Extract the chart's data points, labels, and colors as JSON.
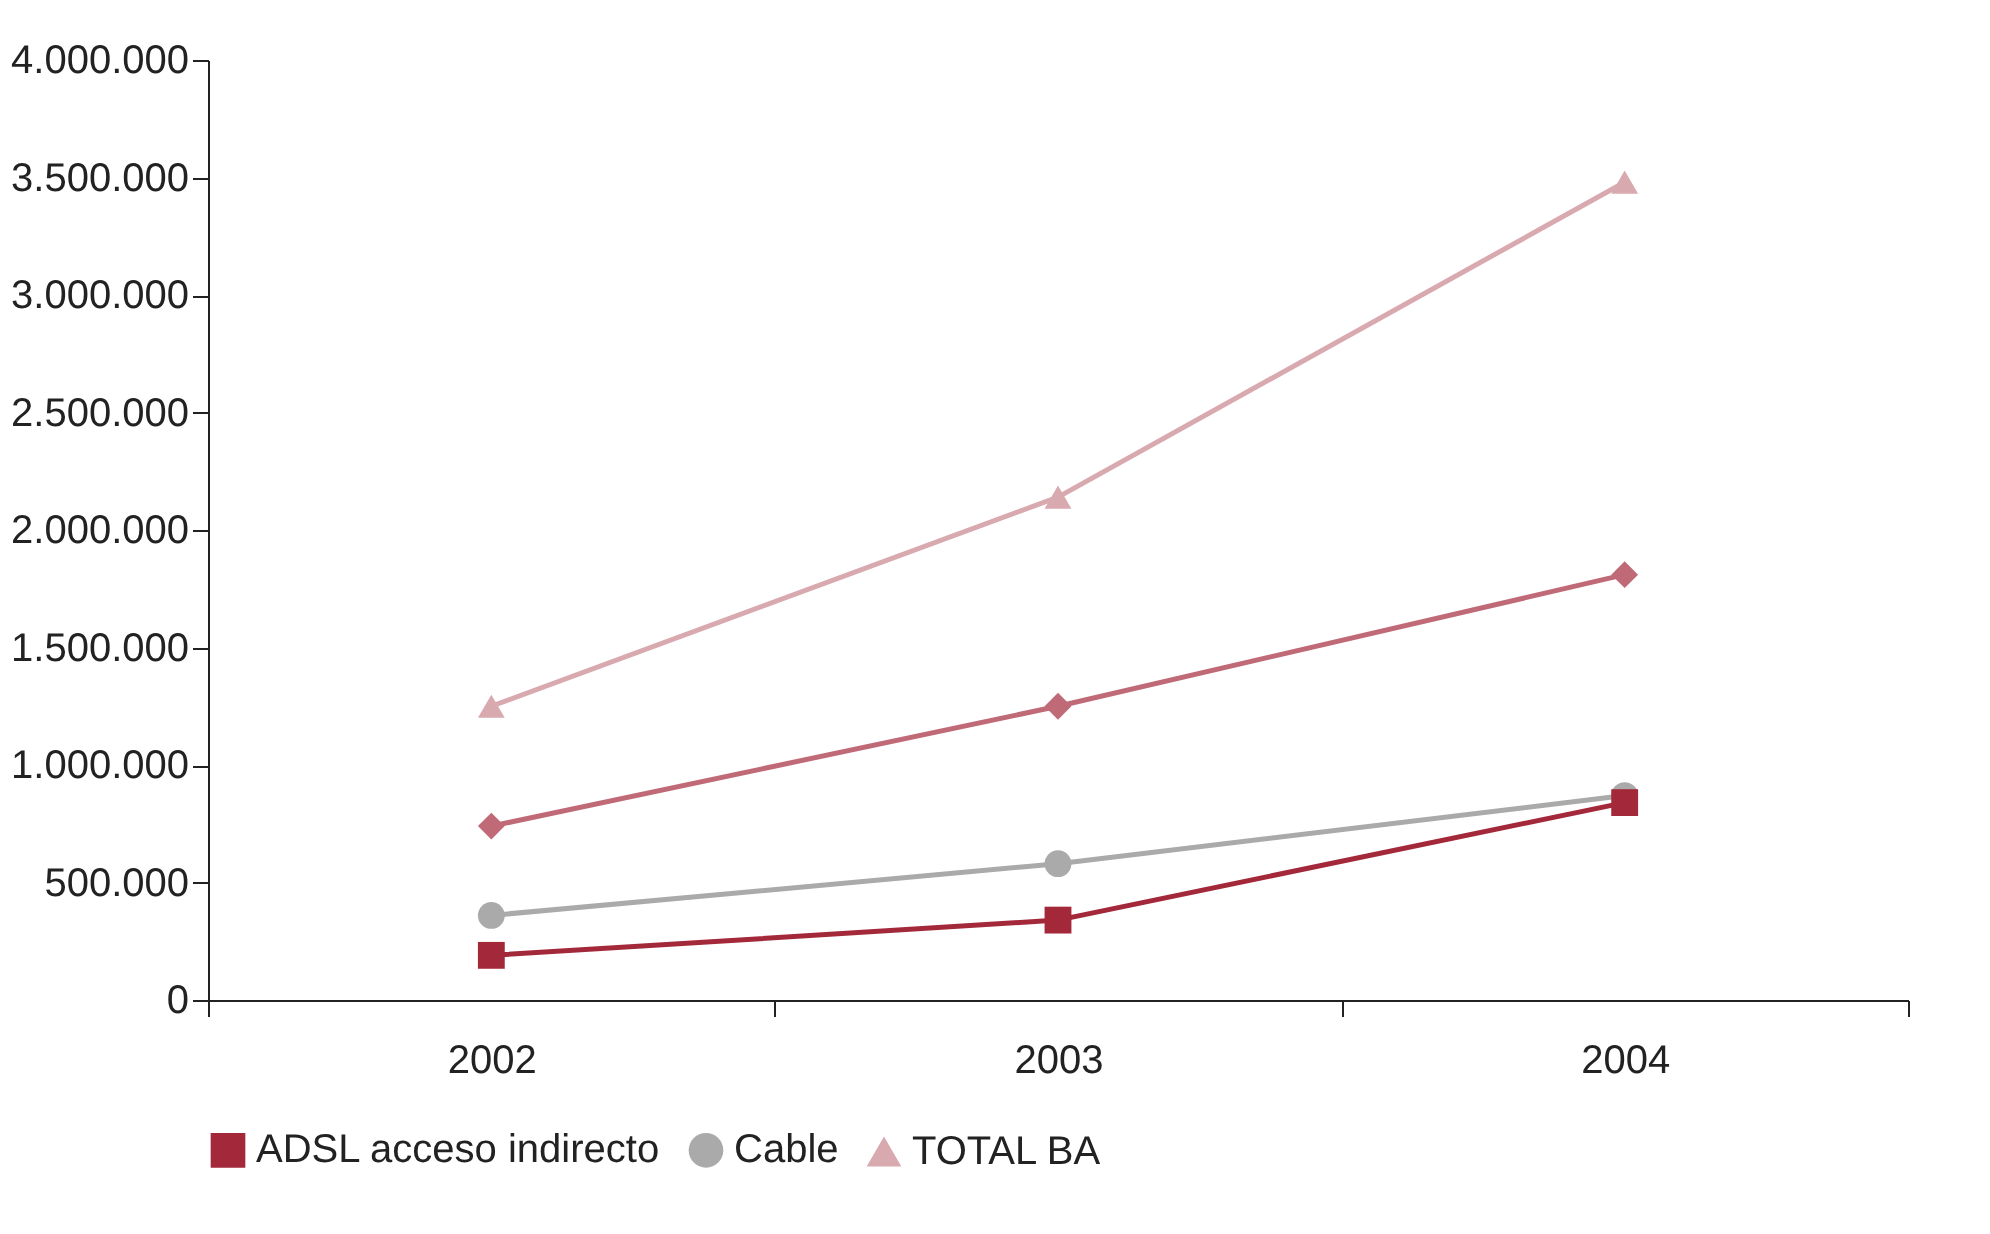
{
  "chart_data": {
    "type": "line",
    "categories": [
      "2002",
      "2003",
      "2004"
    ],
    "ylim": [
      0,
      4000000
    ],
    "yticks": [
      {
        "value": 0,
        "label": "0"
      },
      {
        "value": 500000,
        "label": "500.000"
      },
      {
        "value": 1000000,
        "label": "1.000.000"
      },
      {
        "value": 1500000,
        "label": "1.500.000"
      },
      {
        "value": 2000000,
        "label": "2.000.000"
      },
      {
        "value": 2500000,
        "label": "2.500.000"
      },
      {
        "value": 3000000,
        "label": "3.000.000"
      },
      {
        "value": 3500000,
        "label": "3.500.000"
      },
      {
        "value": 4000000,
        "label": "4.000.000"
      }
    ],
    "series": [
      {
        "color": "#c06a78",
        "marker": "diamond",
        "values": [
          740000,
          1250000,
          1810000
        ]
      },
      {
        "name": "ADSL acceso indirecto",
        "color": "#a3283a",
        "marker": "square",
        "values": [
          190000,
          340000,
          840000
        ]
      },
      {
        "name": "Cable",
        "color": "#aaaaaa",
        "marker": "circle",
        "values": [
          360000,
          580000,
          870000
        ]
      },
      {
        "name": "TOTAL BA",
        "color": "#d9a9b0",
        "marker": "triangle",
        "values": [
          1250000,
          2140000,
          3480000
        ]
      }
    ],
    "grid": false,
    "legend": "bottom",
    "line_style": "solid"
  }
}
